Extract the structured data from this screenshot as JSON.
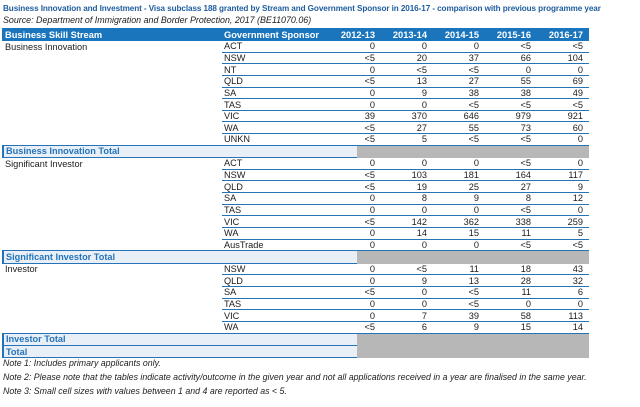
{
  "title": "Business Innovation and Investment - Visa subclass 188 granted by Stream and Government Sponsor in 2016-17 - comparison with previous programme year",
  "source": "Source: Department of Immigration and Border Protection, 2017 (BE11070.06)",
  "colors": {
    "header_bg": "#1B75BC",
    "row_border": "#2472B8",
    "total_label_bg": "#E8EFF7",
    "total_label_text": "#2574BA",
    "suppressed_cell_gray": "#B7B7B7",
    "title_text": "#1E5C9E"
  },
  "chart_data": {
    "type": "table",
    "title": "Business Innovation and Investment - Visa subclass 188 granted by Stream and Government Sponsor in 2016-17 - comparison with previous programme year",
    "columns": [
      "Business Skill Stream",
      "Government Sponsor",
      "2012-13",
      "2013-14",
      "2014-15",
      "2015-16",
      "2016-17"
    ],
    "sections": [
      {
        "stream": "Business Innovation",
        "total_label": "Business Innovation Total",
        "rows": [
          {
            "sponsor": "ACT",
            "values": [
              "0",
              "0",
              "0",
              "<5",
              "<5"
            ]
          },
          {
            "sponsor": "NSW",
            "values": [
              "<5",
              "20",
              "37",
              "66",
              "104"
            ]
          },
          {
            "sponsor": "NT",
            "values": [
              "0",
              "<5",
              "<5",
              "0",
              "0"
            ]
          },
          {
            "sponsor": "QLD",
            "values": [
              "<5",
              "13",
              "27",
              "55",
              "69"
            ]
          },
          {
            "sponsor": "SA",
            "values": [
              "0",
              "9",
              "38",
              "38",
              "49"
            ]
          },
          {
            "sponsor": "TAS",
            "values": [
              "0",
              "0",
              "<5",
              "<5",
              "<5"
            ]
          },
          {
            "sponsor": "VIC",
            "values": [
              "39",
              "370",
              "646",
              "979",
              "921"
            ]
          },
          {
            "sponsor": "WA",
            "values": [
              "<5",
              "27",
              "55",
              "73",
              "60"
            ]
          },
          {
            "sponsor": "UNKN",
            "values": [
              "<5",
              "5",
              "<5",
              "<5",
              "0"
            ]
          }
        ]
      },
      {
        "stream": "Significant Investor",
        "total_label": "Significant Investor Total",
        "rows": [
          {
            "sponsor": "ACT",
            "values": [
              "0",
              "0",
              "0",
              "<5",
              "0"
            ]
          },
          {
            "sponsor": "NSW",
            "values": [
              "<5",
              "103",
              "181",
              "164",
              "117"
            ]
          },
          {
            "sponsor": "QLD",
            "values": [
              "<5",
              "19",
              "25",
              "27",
              "9"
            ]
          },
          {
            "sponsor": "SA",
            "values": [
              "0",
              "8",
              "9",
              "8",
              "12"
            ]
          },
          {
            "sponsor": "TAS",
            "values": [
              "0",
              "0",
              "0",
              "<5",
              "0"
            ]
          },
          {
            "sponsor": "VIC",
            "values": [
              "<5",
              "142",
              "362",
              "338",
              "259"
            ]
          },
          {
            "sponsor": "WA",
            "values": [
              "0",
              "14",
              "15",
              "11",
              "5"
            ]
          },
          {
            "sponsor": "AusTrade",
            "values": [
              "0",
              "0",
              "0",
              "<5",
              "<5"
            ]
          }
        ]
      },
      {
        "stream": "Investor",
        "total_label": "Investor Total",
        "rows": [
          {
            "sponsor": "NSW",
            "values": [
              "0",
              "<5",
              "11",
              "18",
              "43"
            ]
          },
          {
            "sponsor": "QLD",
            "values": [
              "0",
              "9",
              "13",
              "28",
              "32"
            ]
          },
          {
            "sponsor": "SA",
            "values": [
              "<5",
              "0",
              "<5",
              "11",
              "6"
            ]
          },
          {
            "sponsor": "TAS",
            "values": [
              "0",
              "0",
              "<5",
              "0",
              "0"
            ]
          },
          {
            "sponsor": "VIC",
            "values": [
              "0",
              "7",
              "39",
              "58",
              "113"
            ]
          },
          {
            "sponsor": "WA",
            "values": [
              "<5",
              "6",
              "9",
              "15",
              "14"
            ]
          }
        ]
      }
    ],
    "grand_total_label": "Total"
  },
  "notes": [
    "Note 1: Includes primary applicants only.",
    "Note 2: Please note that the tables indicate activity/outcome in the given year and not all applications received in a year are finalised in the same year.",
    "Note 3: Small cell sizes with values between 1 and 4 are reported as < 5."
  ]
}
